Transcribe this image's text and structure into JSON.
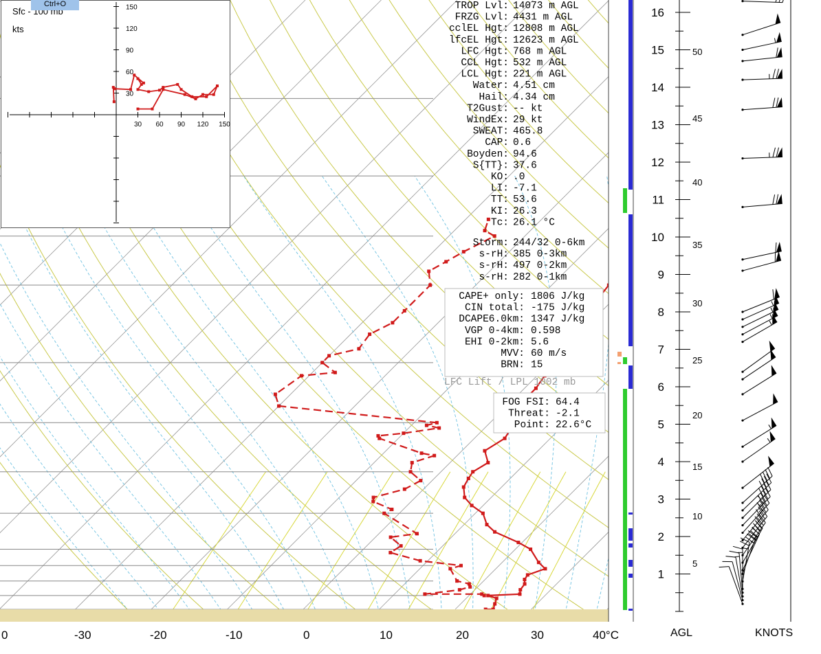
{
  "window": {
    "tooltip": "Ctrl+O"
  },
  "hodograph": {
    "title": "Sfc - 100 mb",
    "units": "kts",
    "ring_labels_y": [
      "150",
      "120",
      "90",
      "60",
      "30"
    ],
    "ring_labels_x": [
      "30",
      "60",
      "90",
      "120",
      "150"
    ],
    "points": [
      [
        -3,
        18
      ],
      [
        -4,
        38
      ],
      [
        -2,
        36
      ],
      [
        20,
        35
      ],
      [
        25,
        55
      ],
      [
        38,
        44
      ],
      [
        30,
        50
      ],
      [
        35,
        42
      ],
      [
        30,
        35
      ],
      [
        45,
        32
      ],
      [
        60,
        34
      ],
      [
        65,
        38
      ],
      [
        85,
        42
      ],
      [
        90,
        35
      ],
      [
        105,
        25
      ],
      [
        125,
        25
      ],
      [
        140,
        40
      ],
      [
        135,
        28
      ],
      [
        120,
        28
      ],
      [
        110,
        22
      ],
      [
        95,
        28
      ],
      [
        65,
        35
      ],
      [
        50,
        8
      ],
      [
        30,
        8
      ]
    ]
  },
  "indices": [
    {
      "label": "TROP Lvl:",
      "value": "14073 m AGL"
    },
    {
      "label": "FRZG Lvl:",
      "value": " 4431 m AGL"
    },
    {
      "label": "cclEL Hgt:",
      "value": "12808 m AGL"
    },
    {
      "label": "lfcEL Hgt:",
      "value": "12623 m AGL"
    },
    {
      "label": "LFC Hgt:",
      "value": "  768 m AGL"
    },
    {
      "label": "CCL Hgt:",
      "value": "  532 m AGL"
    },
    {
      "label": "LCL Hgt:",
      "value": "  221 m AGL"
    },
    {
      "label": "Water:",
      "value": " 4.51 cm"
    },
    {
      "label": "Hail:",
      "value": " 4.34 cm"
    },
    {
      "label": "T2Gust:",
      "value": "   -- kt"
    },
    {
      "label": "WindEx:",
      "value": "   29 kt"
    },
    {
      "label": "SWEAT:",
      "value": "465.8"
    },
    {
      "label": "CAP:",
      "value": "  0.6"
    },
    {
      "label": "Boyden:",
      "value": " 94.6"
    },
    {
      "label": "S{TT}:",
      "value": " 37.6"
    },
    {
      "label": "KO:",
      "value": "   .0"
    },
    {
      "label": "LI:",
      "value": " -7.1"
    },
    {
      "label": "TT:",
      "value": " 53.6"
    },
    {
      "label": "KI:",
      "value": " 26.3"
    },
    {
      "label": "Tc:",
      "value": " 26.1 °C"
    }
  ],
  "storm": [
    {
      "label": "Storm:",
      "value": "244/32 0-6km"
    },
    {
      "label": "s-rH:",
      "value": " 385  0-3km"
    },
    {
      "label": "s-rH:",
      "value": " 497  0-2km"
    },
    {
      "label": "s-rH:",
      "value": " 282  0-1km"
    }
  ],
  "parcel": [
    {
      "label": "CAPE+ only:",
      "value": " 1806 J/kg"
    },
    {
      "label": "CIN total:",
      "value": " -175 J/kg"
    },
    {
      "label": "DCAPE6.0km:",
      "value": " 1347 J/kg"
    },
    {
      "label": "VGP 0-4km:",
      "value": "  0.598"
    },
    {
      "label": "EHI 0-2km:",
      "value": "  5.6"
    },
    {
      "label": "MVV:",
      "value": "   60 m/s"
    },
    {
      "label": "BRN:",
      "value": "   15"
    }
  ],
  "parcel_footer": "LFC Lift / LPL 1002 mb",
  "fog": [
    {
      "label": "FOG FSI:",
      "value": "64.4"
    },
    {
      "label": "Threat:",
      "value": "-2.1"
    },
    {
      "label": "Point:",
      "value": "22.6°C"
    }
  ],
  "colors": {
    "profile": "#d01a1a",
    "isotherm": "#999999",
    "dry_adiabat": "#c9c94a",
    "moist_adiabat": "#6cc0e0",
    "mixing_ratio": "#d8d83a",
    "ground": "#e8dca8",
    "cloud_bar": "#2a2ad4",
    "humid_bar": "#2ecc2e",
    "orange_mark": "#f4a070"
  },
  "chart_data": {
    "type": "line",
    "title": "",
    "xlabel": "°C",
    "x_ticks": [
      "0",
      "-30",
      "-20",
      "-10",
      "0",
      "10",
      "20",
      "30",
      "40°C"
    ],
    "xlim": [
      -40,
      40
    ],
    "ylabel": "",
    "isobar_pressures_mb": [
      1000,
      950,
      900,
      850,
      800,
      700,
      600,
      500,
      400,
      300,
      250,
      200,
      150
    ],
    "series": [
      {
        "style": "solid",
        "points_t_p": [
          [
            24.0,
            1000
          ],
          [
            25.0,
            1000
          ],
          [
            24.5,
            980
          ],
          [
            24.0,
            960
          ],
          [
            22.5,
            950
          ],
          [
            26.5,
            945
          ],
          [
            26,
            930
          ],
          [
            25.8,
            910
          ],
          [
            25.2,
            895
          ],
          [
            25.0,
            880
          ],
          [
            26.5,
            860
          ],
          [
            24.8,
            840
          ],
          [
            22,
            800
          ],
          [
            19.5,
            780
          ],
          [
            15,
            750
          ],
          [
            13,
            730
          ],
          [
            11,
            700
          ],
          [
            8.5,
            680
          ],
          [
            6.5,
            660
          ],
          [
            5,
            635
          ],
          [
            4.5,
            615
          ],
          [
            4.2,
            600
          ],
          [
            5,
            580
          ],
          [
            3,
            555
          ],
          [
            4,
            530
          ],
          [
            3.5,
            510
          ],
          [
            2,
            490
          ],
          [
            1.5,
            470
          ],
          [
            1.5,
            440
          ],
          [
            1,
            420
          ],
          [
            0.5,
            400
          ],
          [
            0,
            380
          ],
          [
            -1.5,
            350
          ],
          [
            -2,
            320
          ],
          [
            -2.5,
            300
          ],
          [
            -3.5,
            280
          ],
          [
            -3.5,
            265
          ],
          [
            -4,
            250
          ],
          [
            -4.5,
            235
          ],
          [
            -5,
            225
          ],
          [
            -6,
            215
          ],
          [
            -7,
            205
          ],
          [
            -9,
            195
          ],
          [
            -12,
            185
          ],
          [
            -15,
            175
          ],
          [
            -17,
            165
          ],
          [
            -18.5,
            155
          ],
          [
            -21,
            150
          ],
          [
            -23,
            142
          ]
        ]
      },
      {
        "style": "dashed",
        "points_t_p": [
          [
            22,
            950
          ],
          [
            21.5,
            945
          ],
          [
            14,
            945
          ],
          [
            18,
            930
          ],
          [
            19,
            920
          ],
          [
            18.5,
            910
          ],
          [
            16.5,
            900
          ],
          [
            14,
            860
          ],
          [
            15,
            850
          ],
          [
            9,
            835
          ],
          [
            4,
            810
          ],
          [
            4.5,
            790
          ],
          [
            2,
            765
          ],
          [
            5,
            755
          ],
          [
            -2,
            700
          ],
          [
            -1.5,
            690
          ],
          [
            -5,
            670
          ],
          [
            -5.5,
            660
          ],
          [
            -2.5,
            640
          ],
          [
            -1.5,
            620
          ],
          [
            -4,
            600
          ],
          [
            -5,
            580
          ],
          [
            -3,
            565
          ],
          [
            -5,
            560
          ],
          [
            -12.5,
            530
          ],
          [
            -13,
            525
          ],
          [
            -10,
            520
          ],
          [
            -6,
            510
          ],
          [
            -8,
            505
          ],
          [
            -7,
            500
          ],
          [
            -30,
            470
          ],
          [
            -32,
            450
          ],
          [
            -31,
            420
          ],
          [
            -27,
            415
          ],
          [
            -30,
            400
          ],
          [
            -30,
            390
          ],
          [
            -27,
            380
          ],
          [
            -27.5,
            360
          ],
          [
            -26,
            345
          ],
          [
            -26,
            330
          ],
          [
            -26,
            300
          ],
          [
            -28,
            285
          ],
          [
            -27,
            275
          ],
          [
            -26,
            265
          ],
          [
            -24,
            250
          ],
          [
            -26,
            245
          ],
          [
            -27,
            235
          ]
        ]
      }
    ],
    "height_scale_km": [
      "1",
      "2",
      "3",
      "4",
      "5",
      "6",
      "7",
      "8",
      "9",
      "10",
      "11",
      "12",
      "13",
      "14",
      "15",
      "16"
    ],
    "height_label": "AGL",
    "wind_label": "KNOTS",
    "wind_speed_labels": [
      "5",
      "10",
      "15",
      "20",
      "25",
      "30",
      "35",
      "40",
      "45",
      "50"
    ],
    "winds": [
      {
        "h": 0.2,
        "dir": 160,
        "spd": 10
      },
      {
        "h": 0.3,
        "dir": 165,
        "spd": 12
      },
      {
        "h": 0.4,
        "dir": 170,
        "spd": 14
      },
      {
        "h": 0.5,
        "dir": 175,
        "spd": 16
      },
      {
        "h": 0.6,
        "dir": 180,
        "spd": 18
      },
      {
        "h": 0.8,
        "dir": 190,
        "spd": 25
      },
      {
        "h": 1.0,
        "dir": 200,
        "spd": 30
      },
      {
        "h": 1.1,
        "dir": 205,
        "spd": 35
      },
      {
        "h": 1.3,
        "dir": 210,
        "spd": 38
      },
      {
        "h": 1.5,
        "dir": 215,
        "spd": 40
      },
      {
        "h": 1.7,
        "dir": 218,
        "spd": 42
      },
      {
        "h": 1.9,
        "dir": 220,
        "spd": 44
      },
      {
        "h": 2.1,
        "dir": 222,
        "spd": 44
      },
      {
        "h": 2.3,
        "dir": 224,
        "spd": 45
      },
      {
        "h": 2.5,
        "dir": 225,
        "spd": 45
      },
      {
        "h": 2.7,
        "dir": 226,
        "spd": 44
      },
      {
        "h": 2.9,
        "dir": 228,
        "spd": 44
      },
      {
        "h": 3.3,
        "dir": 232,
        "spd": 50
      },
      {
        "h": 4.0,
        "dir": 235,
        "spd": 55
      },
      {
        "h": 4.4,
        "dir": 238,
        "spd": 55
      },
      {
        "h": 5.1,
        "dir": 242,
        "spd": 52
      },
      {
        "h": 5.8,
        "dir": 238,
        "spd": 50
      },
      {
        "h": 6.2,
        "dir": 236,
        "spd": 50
      },
      {
        "h": 6.4,
        "dir": 234,
        "spd": 50
      },
      {
        "h": 7.2,
        "dir": 240,
        "spd": 55
      },
      {
        "h": 7.4,
        "dir": 242,
        "spd": 55
      },
      {
        "h": 7.6,
        "dir": 244,
        "spd": 58
      },
      {
        "h": 7.8,
        "dir": 246,
        "spd": 58
      },
      {
        "h": 8.0,
        "dir": 248,
        "spd": 60
      },
      {
        "h": 9.1,
        "dir": 255,
        "spd": 60
      },
      {
        "h": 9.4,
        "dir": 258,
        "spd": 62
      },
      {
        "h": 10.8,
        "dir": 265,
        "spd": 70
      },
      {
        "h": 12.1,
        "dir": 268,
        "spd": 75
      },
      {
        "h": 13.4,
        "dir": 266,
        "spd": 70
      },
      {
        "h": 14.2,
        "dir": 268,
        "spd": 75
      },
      {
        "h": 14.7,
        "dir": 264,
        "spd": 60
      },
      {
        "h": 15.0,
        "dir": 258,
        "spd": 55
      },
      {
        "h": 15.4,
        "dir": 252,
        "spd": 50
      },
      {
        "h": 16.3,
        "dir": 272,
        "spd": 30
      }
    ]
  }
}
